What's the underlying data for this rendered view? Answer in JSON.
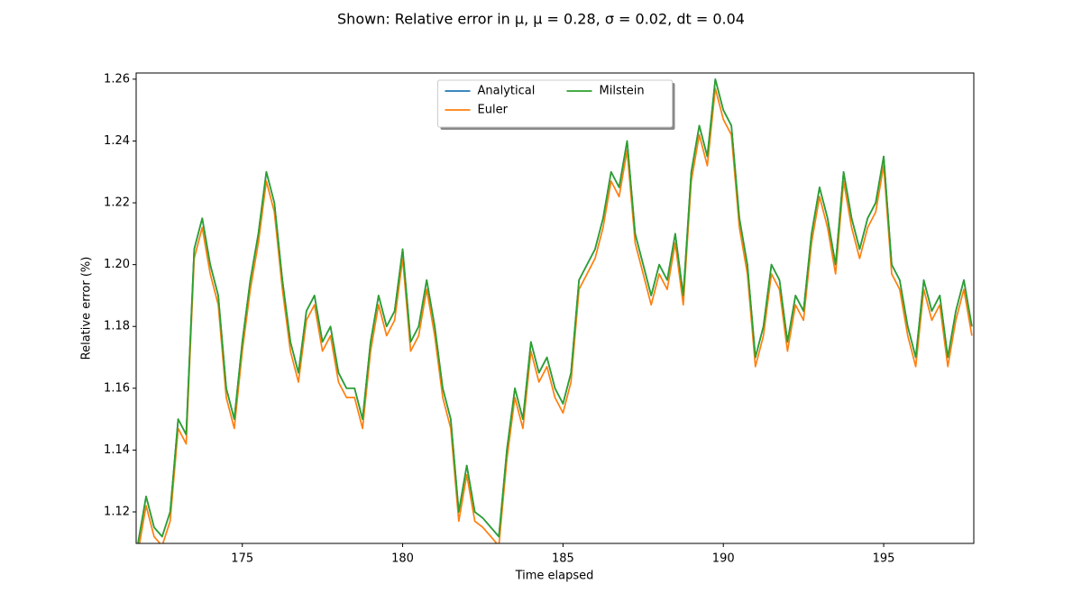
{
  "chart_data": {
    "type": "line",
    "title": "Shown: Relative error in μ, μ = 0.28, σ = 0.02, dt = 0.04",
    "xlabel": "Time elapsed",
    "ylabel": "Relative error (%)",
    "x": [
      171.75,
      172,
      172.25,
      172.5,
      172.75,
      173,
      173.25,
      173.5,
      173.75,
      174,
      174.25,
      174.5,
      174.75,
      175,
      175.25,
      175.5,
      175.75,
      176,
      176.25,
      176.5,
      176.75,
      177,
      177.25,
      177.5,
      177.75,
      178,
      178.25,
      178.5,
      178.75,
      179,
      179.25,
      179.5,
      179.75,
      180,
      180.25,
      180.5,
      180.75,
      181,
      181.25,
      181.5,
      181.75,
      182,
      182.25,
      182.5,
      182.75,
      183,
      183.25,
      183.5,
      183.75,
      184,
      184.25,
      184.5,
      184.75,
      185,
      185.25,
      185.5,
      185.75,
      186,
      186.25,
      186.5,
      186.75,
      187,
      187.25,
      187.5,
      187.75,
      188,
      188.25,
      188.5,
      188.75,
      189,
      189.25,
      189.5,
      189.75,
      190,
      190.25,
      190.5,
      190.75,
      191,
      191.25,
      191.5,
      191.75,
      192,
      192.25,
      192.5,
      192.75,
      193,
      193.25,
      193.5,
      193.75,
      194,
      194.25,
      194.5,
      194.75,
      195,
      195.25,
      195.5,
      195.75,
      196,
      196.25,
      196.5,
      196.75,
      197,
      197.25,
      197.5,
      197.75
    ],
    "series": [
      {
        "name": "Analytical",
        "color": "#1f77b4",
        "values": [
          1.11,
          1.125,
          1.115,
          1.112,
          1.12,
          1.15,
          1.145,
          1.205,
          1.215,
          1.2,
          1.19,
          1.16,
          1.15,
          1.175,
          1.195,
          1.21,
          1.23,
          1.22,
          1.195,
          1.175,
          1.165,
          1.185,
          1.19,
          1.175,
          1.18,
          1.165,
          1.16,
          1.16,
          1.15,
          1.175,
          1.19,
          1.18,
          1.185,
          1.205,
          1.175,
          1.18,
          1.195,
          1.18,
          1.16,
          1.15,
          1.12,
          1.135,
          1.12,
          1.118,
          1.115,
          1.112,
          1.14,
          1.16,
          1.15,
          1.175,
          1.165,
          1.17,
          1.16,
          1.155,
          1.165,
          1.195,
          1.2,
          1.205,
          1.215,
          1.23,
          1.225,
          1.24,
          1.21,
          1.2,
          1.19,
          1.2,
          1.195,
          1.21,
          1.19,
          1.23,
          1.245,
          1.235,
          1.26,
          1.25,
          1.245,
          1.215,
          1.2,
          1.17,
          1.18,
          1.2,
          1.195,
          1.175,
          1.19,
          1.185,
          1.21,
          1.225,
          1.215,
          1.2,
          1.23,
          1.215,
          1.205,
          1.215,
          1.22,
          1.235,
          1.2,
          1.195,
          1.18,
          1.17,
          1.195,
          1.185,
          1.19,
          1.17,
          1.185,
          1.195,
          1.18
        ]
      },
      {
        "name": "Euler",
        "color": "#ff7f0e",
        "values": [
          1.107,
          1.122,
          1.112,
          1.109,
          1.117,
          1.147,
          1.142,
          1.202,
          1.212,
          1.197,
          1.187,
          1.157,
          1.147,
          1.172,
          1.192,
          1.207,
          1.227,
          1.217,
          1.192,
          1.172,
          1.162,
          1.182,
          1.187,
          1.172,
          1.177,
          1.162,
          1.157,
          1.157,
          1.147,
          1.172,
          1.187,
          1.177,
          1.182,
          1.202,
          1.172,
          1.177,
          1.192,
          1.177,
          1.157,
          1.147,
          1.117,
          1.132,
          1.117,
          1.115,
          1.112,
          1.109,
          1.137,
          1.157,
          1.147,
          1.172,
          1.162,
          1.167,
          1.157,
          1.152,
          1.162,
          1.192,
          1.197,
          1.202,
          1.212,
          1.227,
          1.222,
          1.237,
          1.207,
          1.197,
          1.187,
          1.197,
          1.192,
          1.207,
          1.187,
          1.227,
          1.242,
          1.232,
          1.257,
          1.247,
          1.242,
          1.212,
          1.197,
          1.167,
          1.177,
          1.197,
          1.192,
          1.172,
          1.187,
          1.182,
          1.207,
          1.222,
          1.212,
          1.197,
          1.227,
          1.212,
          1.202,
          1.212,
          1.217,
          1.232,
          1.197,
          1.192,
          1.177,
          1.167,
          1.192,
          1.182,
          1.187,
          1.167,
          1.182,
          1.192,
          1.177
        ]
      },
      {
        "name": "Milstein",
        "color": "#2ca02c",
        "values": [
          1.11,
          1.125,
          1.115,
          1.112,
          1.12,
          1.15,
          1.145,
          1.205,
          1.215,
          1.2,
          1.19,
          1.16,
          1.15,
          1.175,
          1.195,
          1.21,
          1.23,
          1.22,
          1.195,
          1.175,
          1.165,
          1.185,
          1.19,
          1.175,
          1.18,
          1.165,
          1.16,
          1.16,
          1.15,
          1.175,
          1.19,
          1.18,
          1.185,
          1.205,
          1.175,
          1.18,
          1.195,
          1.18,
          1.16,
          1.15,
          1.12,
          1.135,
          1.12,
          1.118,
          1.115,
          1.112,
          1.14,
          1.16,
          1.15,
          1.175,
          1.165,
          1.17,
          1.16,
          1.155,
          1.165,
          1.195,
          1.2,
          1.205,
          1.215,
          1.23,
          1.225,
          1.24,
          1.21,
          1.2,
          1.19,
          1.2,
          1.195,
          1.21,
          1.19,
          1.23,
          1.245,
          1.235,
          1.26,
          1.25,
          1.245,
          1.215,
          1.2,
          1.17,
          1.18,
          1.2,
          1.195,
          1.175,
          1.19,
          1.185,
          1.21,
          1.225,
          1.215,
          1.2,
          1.23,
          1.215,
          1.205,
          1.215,
          1.22,
          1.235,
          1.2,
          1.195,
          1.18,
          1.17,
          1.195,
          1.185,
          1.19,
          1.17,
          1.185,
          1.195,
          1.18
        ]
      }
    ],
    "xlim": [
      171.69,
      197.81
    ],
    "xticks": [
      175,
      180,
      185,
      190,
      195
    ],
    "ylim": [
      1.1098,
      1.262
    ],
    "yticks": [
      1.12,
      1.14,
      1.16,
      1.18,
      {
        "value": 1.2,
        "label": "1.20"
      },
      1.22,
      1.24,
      1.26
    ],
    "legend": "upper center",
    "legend_columns": 2
  }
}
